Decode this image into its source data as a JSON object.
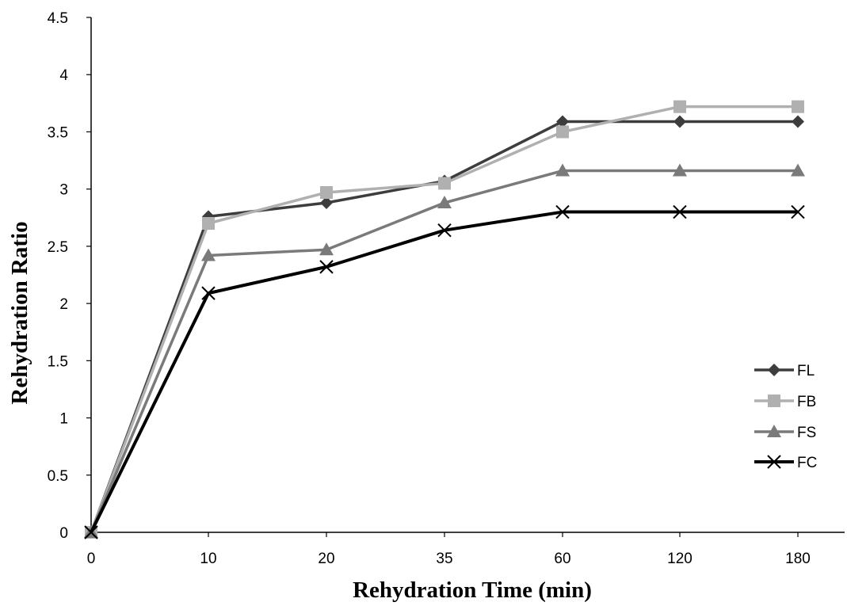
{
  "chart_data": {
    "type": "line",
    "xlabel": "Rehydration Time (min)",
    "ylabel": "Rehydration Ratio",
    "categories": [
      "0",
      "10",
      "20",
      "35",
      "60",
      "120",
      "180"
    ],
    "ylim": [
      0,
      4.5
    ],
    "yticks": [
      "0",
      "0.5",
      "1",
      "1.5",
      "2",
      "2.5",
      "3",
      "3.5",
      "4",
      "4.5"
    ],
    "grid": false,
    "legend_position": "right",
    "series": [
      {
        "name": "FL",
        "values": [
          0,
          2.76,
          2.88,
          3.07,
          3.59,
          3.59,
          3.59
        ],
        "color": "#3d3d3d",
        "marker": "diamond"
      },
      {
        "name": "FB",
        "values": [
          0,
          2.7,
          2.97,
          3.05,
          3.5,
          3.72,
          3.72
        ],
        "color": "#b0b0b0",
        "marker": "square"
      },
      {
        "name": "FS",
        "values": [
          0,
          2.42,
          2.47,
          2.88,
          3.16,
          3.16,
          3.16
        ],
        "color": "#7a7a7a",
        "marker": "triangle"
      },
      {
        "name": "FC",
        "values": [
          0,
          2.09,
          2.32,
          2.64,
          2.8,
          2.8,
          2.8
        ],
        "color": "#000000",
        "marker": "x"
      }
    ]
  }
}
